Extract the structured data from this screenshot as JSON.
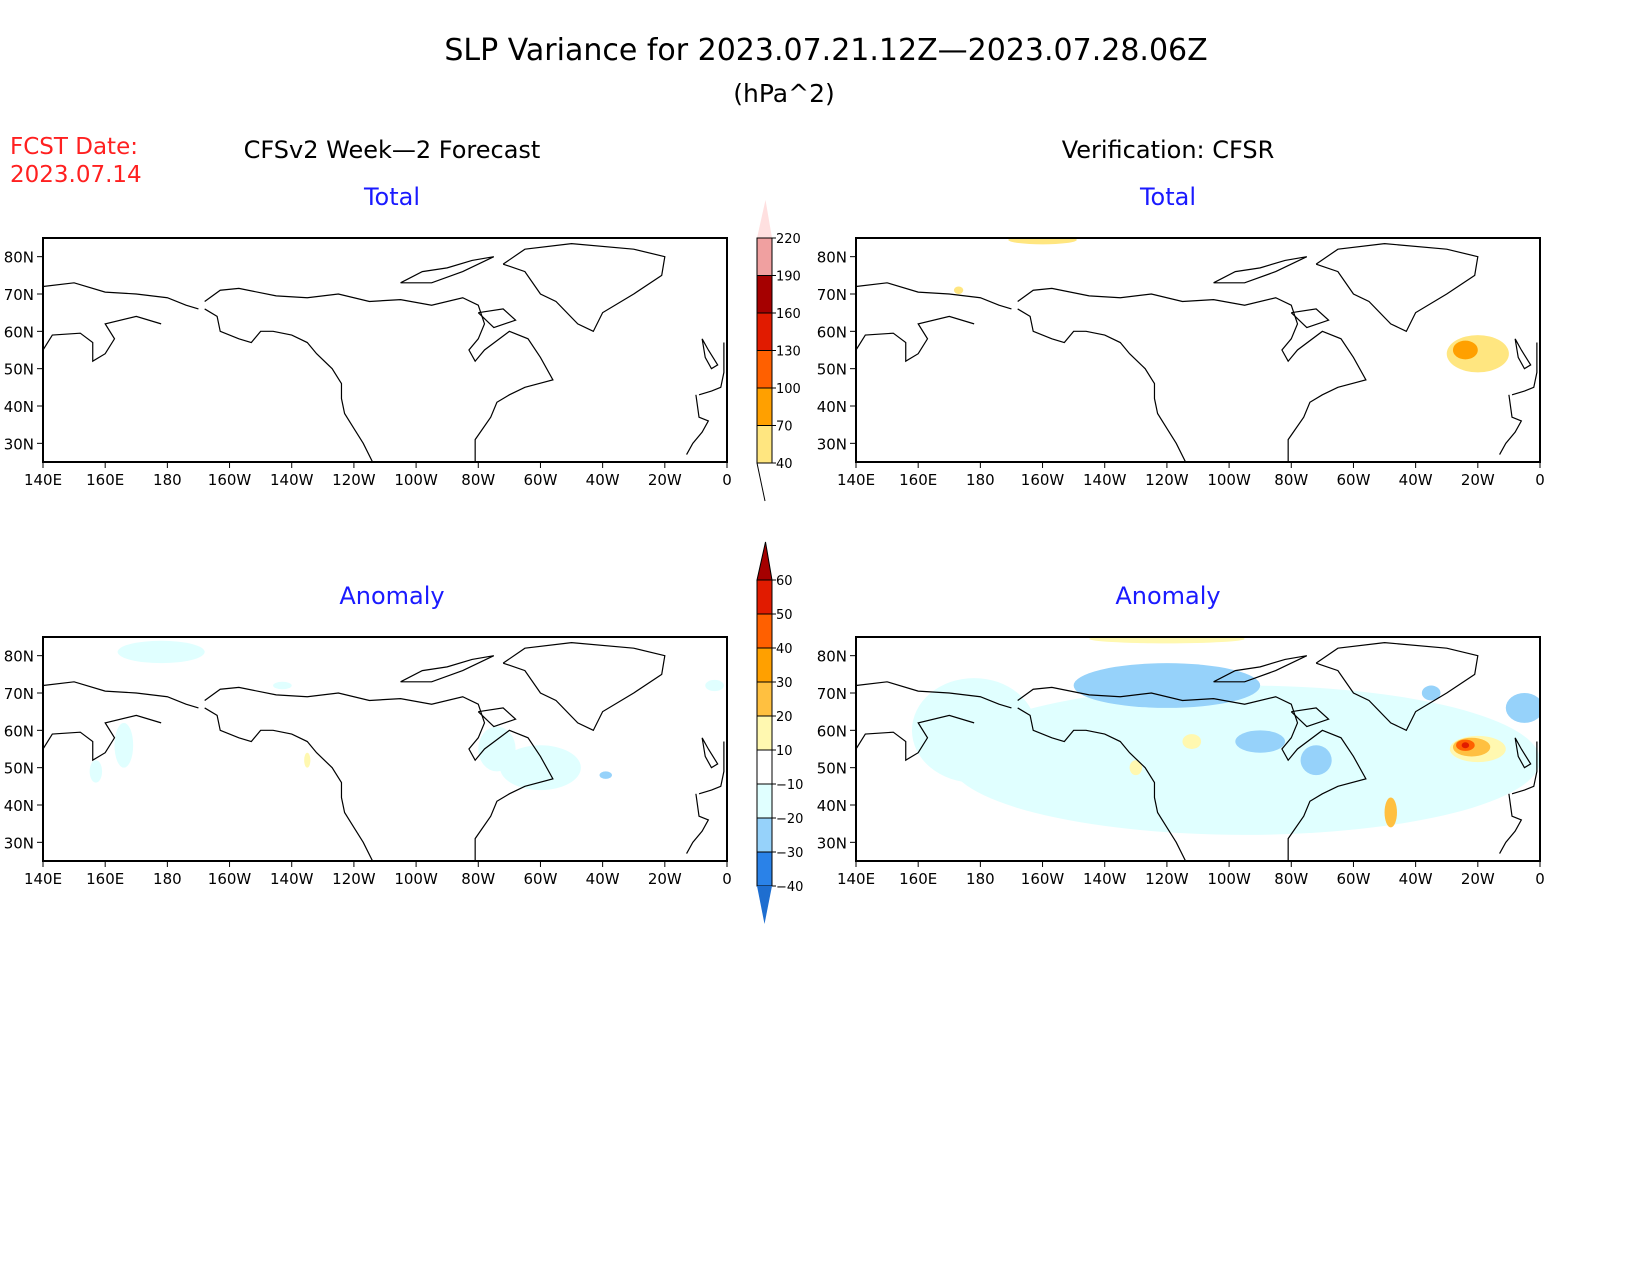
{
  "title": "SLP Variance for 2023.07.21.12Z—2023.07.28.06Z",
  "units": "(hPa^2)",
  "fcst_date_label": "FCST Date:",
  "fcst_date": "2023.07.14",
  "left_header": "CFSv2 Week—2 Forecast",
  "right_header": "Verification: CFSR",
  "panels": [
    {
      "id": "fcst-total",
      "subtitle": "Total"
    },
    {
      "id": "verif-total",
      "subtitle": "Total"
    },
    {
      "id": "fcst-anomaly",
      "subtitle": "Anomaly"
    },
    {
      "id": "verif-anomaly",
      "subtitle": "Anomaly"
    }
  ],
  "lat_labels": [
    "80N",
    "70N",
    "60N",
    "50N",
    "40N",
    "30N"
  ],
  "lon_labels": [
    "140E",
    "160E",
    "180",
    "160W",
    "140W",
    "120W",
    "100W",
    "80W",
    "60W",
    "40W",
    "20W",
    "0"
  ],
  "colorbar_total": {
    "labels": [
      "220",
      "190",
      "160",
      "130",
      "100",
      "70",
      "40"
    ],
    "colors": [
      "#ffe0e0",
      "#f0a0a0",
      "#a50000",
      "#e11b00",
      "#ff6000",
      "#ffa000",
      "#ffe680"
    ]
  },
  "colorbar_anomaly": {
    "labels": [
      "60",
      "50",
      "40",
      "30",
      "20",
      "10",
      "−10",
      "−20",
      "−30",
      "−40"
    ],
    "colors": [
      "#a50000",
      "#e11b00",
      "#ff6000",
      "#ffa000",
      "#ffc040",
      "#fff8b0",
      "#ffffff",
      "#e0ffff",
      "#96d2fa",
      "#2a82e8",
      "#1e6ed0"
    ]
  }
}
